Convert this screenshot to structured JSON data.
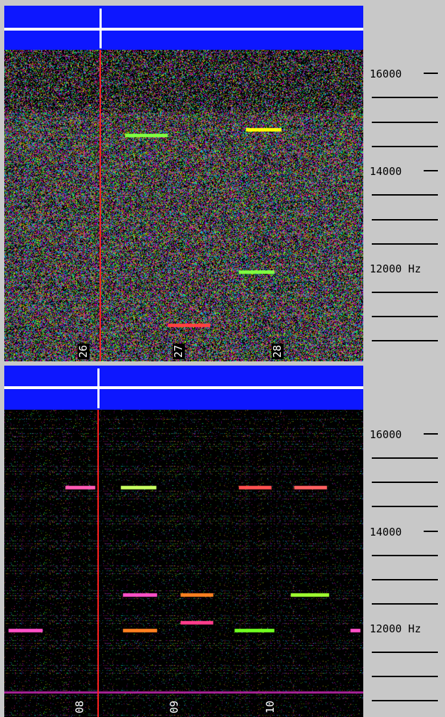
{
  "scale": {
    "labels": [
      "16000",
      "14000",
      "12000 Hz"
    ]
  },
  "top_panel": {
    "time_labels": [
      "26",
      "27",
      "28"
    ]
  },
  "bottom_panel": {
    "time_labels": [
      "08",
      "09",
      "10"
    ]
  },
  "colors": {
    "ticker_blue": "#0d17ff",
    "cursor_red": "#ff2020",
    "scale_bg": "#c8c8c8"
  }
}
